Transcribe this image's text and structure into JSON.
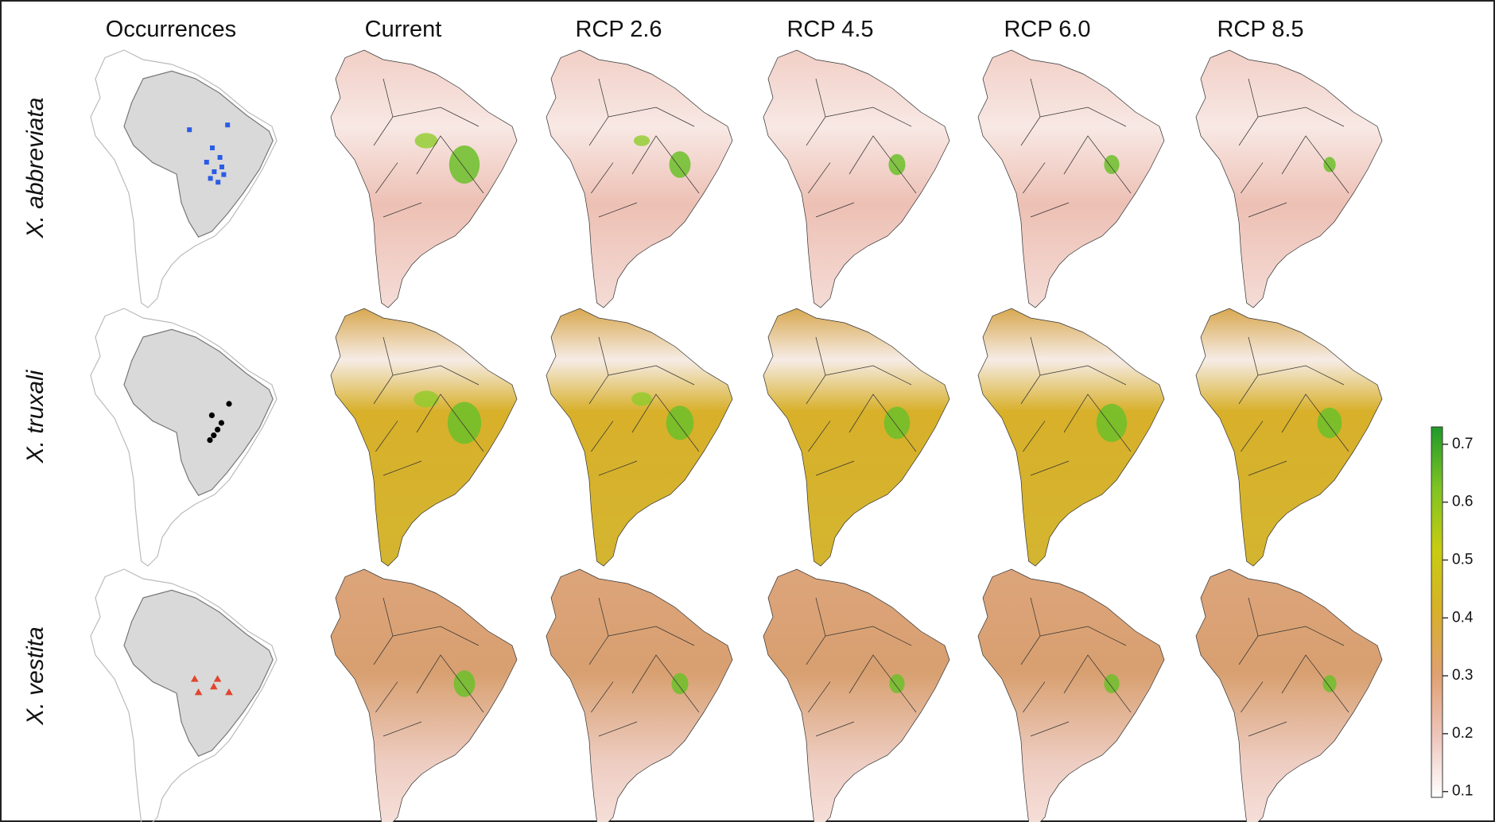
{
  "columns": [
    "Occurrences",
    "Current",
    "RCP 2.6",
    "RCP 4.5",
    "RCP 6.0",
    "RCP 8.5"
  ],
  "rows": [
    "X. abbreviata",
    "X. truxali",
    "X. vestita"
  ],
  "colorbar": {
    "lim": [
      0.09,
      0.73
    ],
    "ticks": [
      0.1,
      0.2,
      0.3,
      0.4,
      0.5,
      0.6,
      0.7
    ],
    "colors": [
      "#ffffff",
      "#eec5bb",
      "#e0a070",
      "#d8b02a",
      "#c8cc10",
      "#7fc422",
      "#1f9a2a"
    ]
  }
}
